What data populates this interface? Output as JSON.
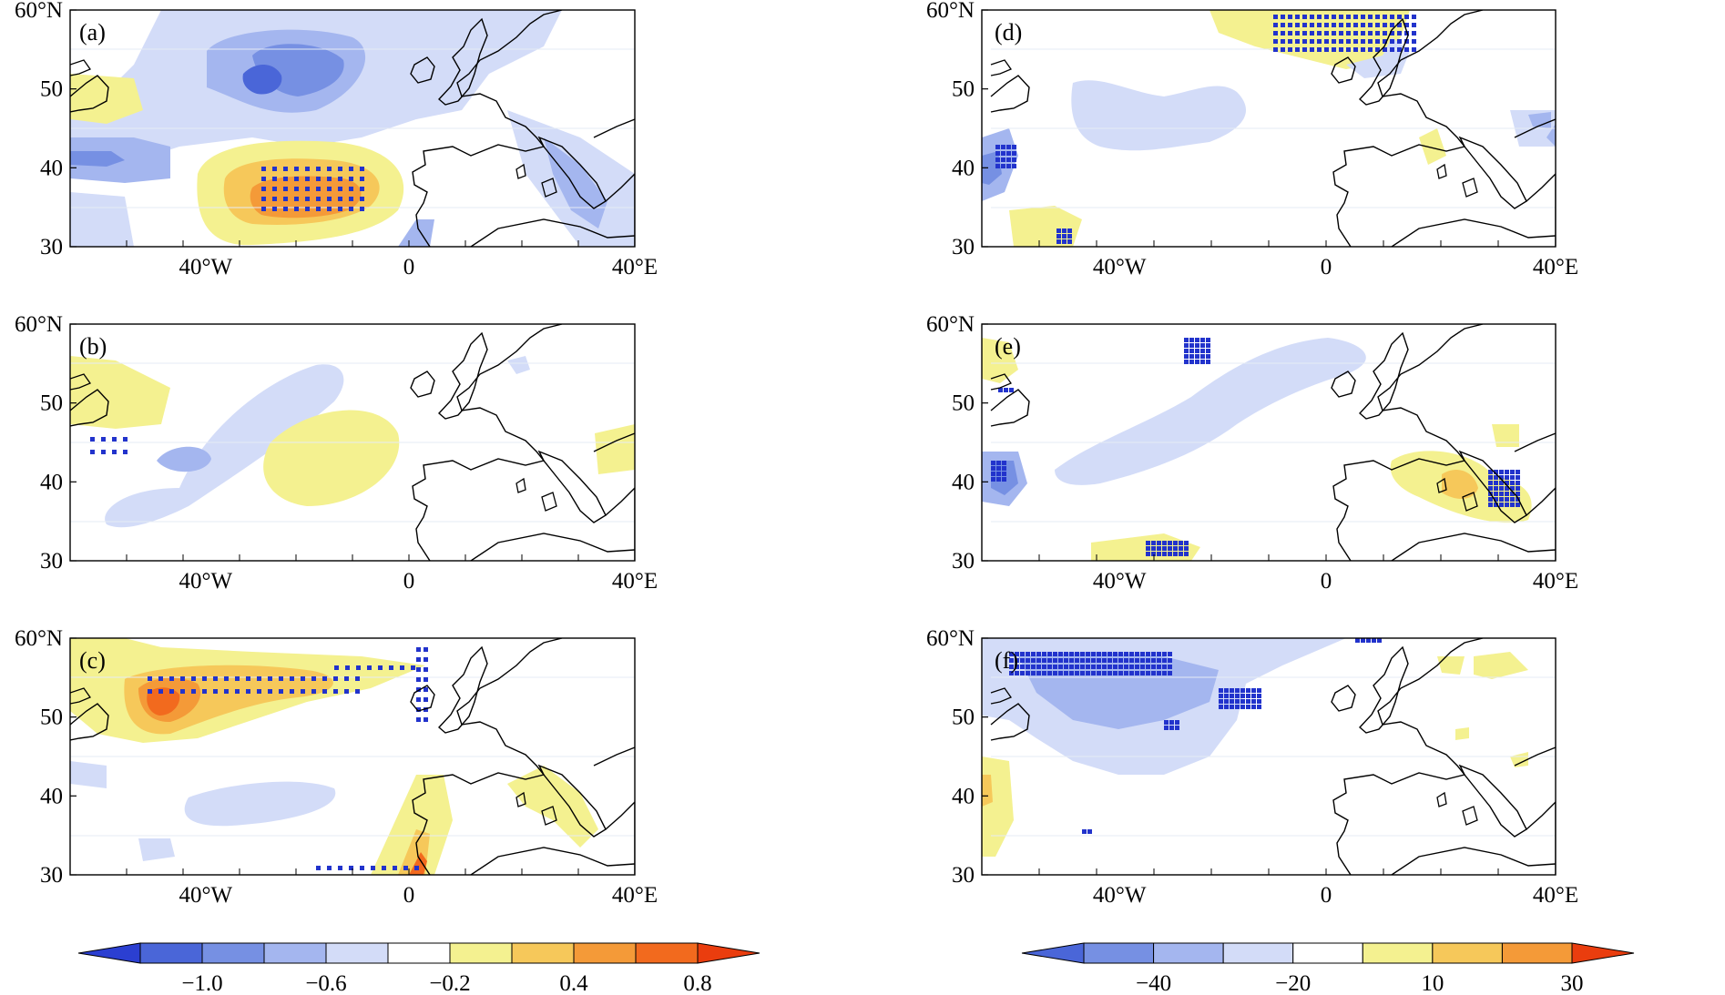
{
  "axes": {
    "lat_ticks": [
      "60°N",
      "50",
      "40",
      "30"
    ],
    "lon_ticks": [
      "40°W",
      "0",
      "40°E"
    ],
    "lat_range": [
      30,
      60
    ],
    "lon_range": [
      -60,
      40
    ]
  },
  "panels": [
    {
      "id": "a",
      "label": "(a)",
      "column": "left"
    },
    {
      "id": "b",
      "label": "(b)",
      "column": "left"
    },
    {
      "id": "c",
      "label": "(c)",
      "column": "left"
    },
    {
      "id": "d",
      "label": "(d)",
      "column": "right"
    },
    {
      "id": "e",
      "label": "(e)",
      "column": "right"
    },
    {
      "id": "f",
      "label": "(f)",
      "column": "right"
    }
  ],
  "colorbars": {
    "left": {
      "colors": [
        "#2b3fd1",
        "#4a66d8",
        "#7690e3",
        "#a4b6ef",
        "#d3dcf8",
        "#ffffff",
        "#f4f190",
        "#f6c85a",
        "#f49a38",
        "#f26a1e",
        "#ea3d0e"
      ],
      "labels": [
        "−1.0",
        "−0.6",
        "−0.2",
        "0.4",
        "0.8"
      ]
    },
    "right": {
      "colors": [
        "#4a66d8",
        "#7690e3",
        "#a4b6ef",
        "#d3dcf8",
        "#ffffff",
        "#f4f190",
        "#f6c85a",
        "#f49a38",
        "#ea3d0e"
      ],
      "labels": [
        "−40",
        "−20",
        "10",
        "30"
      ]
    }
  },
  "colors": {
    "significance_marker": "#2233cc",
    "coastline": "#000000"
  }
}
